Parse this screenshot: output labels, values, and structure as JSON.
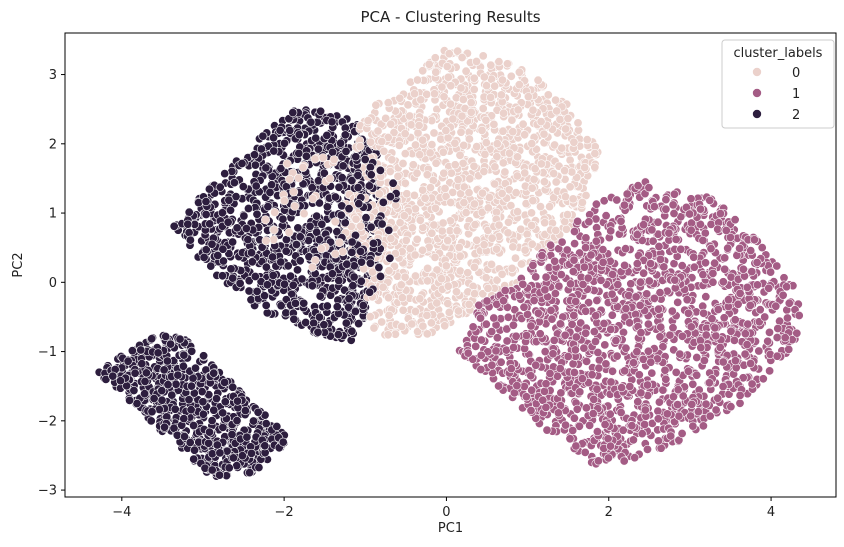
{
  "chart_data": {
    "type": "scatter",
    "title": "PCA - Clustering Results",
    "xlabel": "PC1",
    "ylabel": "PC2",
    "xlim": [
      -4.7,
      4.8
    ],
    "ylim": [
      -3.1,
      3.6
    ],
    "xticks": [
      {
        "value": -4,
        "label": "−4"
      },
      {
        "value": -2,
        "label": "−2"
      },
      {
        "value": 0,
        "label": "0"
      },
      {
        "value": 2,
        "label": "2"
      },
      {
        "value": 4,
        "label": "4"
      }
    ],
    "yticks": [
      {
        "value": -3,
        "label": "−3"
      },
      {
        "value": -2,
        "label": "−2"
      },
      {
        "value": -1,
        "label": "−1"
      },
      {
        "value": 0,
        "label": "0"
      },
      {
        "value": 1,
        "label": "1"
      },
      {
        "value": 2,
        "label": "2"
      },
      {
        "value": 3,
        "label": "3"
      }
    ],
    "grid": false,
    "legend": {
      "title": "cluster_labels",
      "placement": "top-right"
    },
    "series": [
      {
        "name": "0",
        "color": "#ebd1cb",
        "polygon": [
          [
            0.0,
            3.4
          ],
          [
            0.9,
            3.15
          ],
          [
            1.5,
            2.6
          ],
          [
            1.9,
            1.85
          ],
          [
            1.65,
            1.0
          ],
          [
            1.2,
            0.25
          ],
          [
            0.6,
            -0.25
          ],
          [
            -0.2,
            -0.75
          ],
          [
            -0.9,
            -0.8
          ],
          [
            -1.0,
            -0.1
          ],
          [
            -1.3,
            0.9
          ],
          [
            -1.05,
            2.4
          ],
          [
            -0.4,
            3.0
          ]
        ]
      },
      {
        "name": "1",
        "color": "#a45c85",
        "polygon": [
          [
            2.5,
            1.5
          ],
          [
            3.3,
            1.2
          ],
          [
            3.9,
            0.55
          ],
          [
            4.35,
            -0.1
          ],
          [
            4.35,
            -0.8
          ],
          [
            3.65,
            -1.75
          ],
          [
            2.8,
            -2.35
          ],
          [
            1.9,
            -2.7
          ],
          [
            1.3,
            -2.2
          ],
          [
            0.5,
            -1.4
          ],
          [
            0.15,
            -1.0
          ],
          [
            0.4,
            -0.3
          ],
          [
            1.2,
            0.45
          ],
          [
            1.8,
            1.1
          ]
        ]
      },
      {
        "name": "2",
        "color": "#2d1e3e",
        "polygon": [
          [
            -1.8,
            2.55
          ],
          [
            -1.15,
            2.35
          ],
          [
            -0.85,
            1.9
          ],
          [
            -0.75,
            0.6
          ],
          [
            -0.95,
            -0.4
          ],
          [
            -1.2,
            -0.9
          ],
          [
            -1.8,
            -0.65
          ],
          [
            -2.5,
            -0.3
          ],
          [
            -3.4,
            0.75
          ],
          [
            -2.9,
            1.4
          ],
          [
            -2.3,
            2.1
          ]
        ],
        "extra_polygons": [
          [
            [
              -3.6,
              -0.75
            ],
            [
              -3.2,
              -0.8
            ],
            [
              -1.9,
              -2.3
            ],
            [
              -2.4,
              -2.8
            ],
            [
              -2.9,
              -2.8
            ],
            [
              -4.3,
              -1.3
            ]
          ]
        ]
      }
    ]
  }
}
